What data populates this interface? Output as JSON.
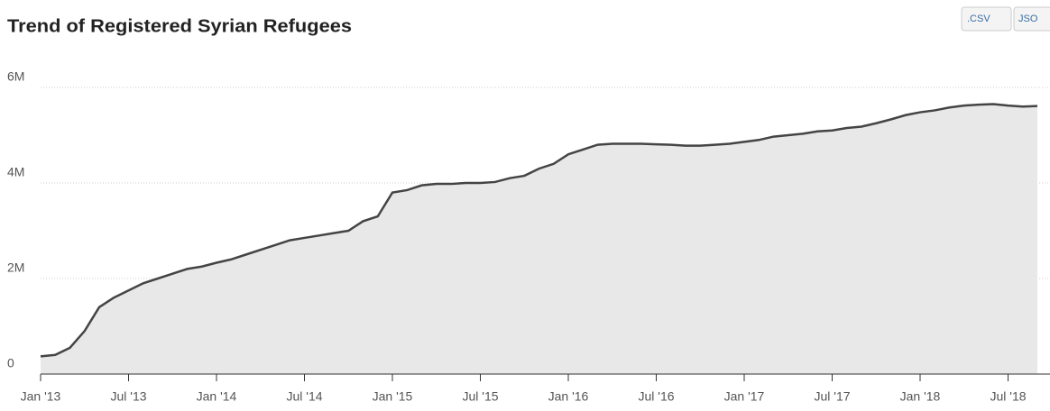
{
  "chart_data": {
    "type": "area",
    "title": "Trend of Registered Syrian Refugees",
    "buttons": [
      ".CSV",
      "JSO"
    ],
    "x": [
      "2013-01",
      "2013-02",
      "2013-03",
      "2013-04",
      "2013-05",
      "2013-06",
      "2013-07",
      "2013-08",
      "2013-09",
      "2013-10",
      "2013-11",
      "2013-12",
      "2014-01",
      "2014-02",
      "2014-03",
      "2014-04",
      "2014-05",
      "2014-06",
      "2014-07",
      "2014-08",
      "2014-09",
      "2014-10",
      "2014-11",
      "2014-12",
      "2015-01",
      "2015-02",
      "2015-03",
      "2015-04",
      "2015-05",
      "2015-06",
      "2015-07",
      "2015-08",
      "2015-09",
      "2015-10",
      "2015-11",
      "2015-12",
      "2016-01",
      "2016-02",
      "2016-03",
      "2016-04",
      "2016-05",
      "2016-06",
      "2016-07",
      "2016-08",
      "2016-09",
      "2016-10",
      "2016-11",
      "2016-12",
      "2017-01",
      "2017-02",
      "2017-03",
      "2017-04",
      "2017-05",
      "2017-06",
      "2017-07",
      "2017-08",
      "2017-09",
      "2017-10",
      "2017-11",
      "2017-12",
      "2018-01",
      "2018-02",
      "2018-03",
      "2018-04",
      "2018-05",
      "2018-06",
      "2018-07",
      "2018-08",
      "2018-09"
    ],
    "values": [
      370000,
      400000,
      550000,
      900000,
      1400000,
      1600000,
      1750000,
      1900000,
      2000000,
      2100000,
      2200000,
      2250000,
      2330000,
      2400000,
      2500000,
      2600000,
      2700000,
      2800000,
      2850000,
      2900000,
      2950000,
      3000000,
      3200000,
      3300000,
      3800000,
      3850000,
      3950000,
      3980000,
      3980000,
      4000000,
      4000000,
      4020000,
      4100000,
      4150000,
      4300000,
      4400000,
      4600000,
      4700000,
      4800000,
      4820000,
      4820000,
      4820000,
      4810000,
      4800000,
      4780000,
      4780000,
      4800000,
      4820000,
      4860000,
      4900000,
      4970000,
      5000000,
      5030000,
      5080000,
      5100000,
      5150000,
      5180000,
      5250000,
      5330000,
      5420000,
      5480000,
      5520000,
      5580000,
      5620000,
      5640000,
      5650000,
      5620000,
      5600000,
      5610000
    ],
    "color": "#444444",
    "fill": "#e8e8e8",
    "xlim": [
      "2013-01",
      "2018-09"
    ],
    "xticks": [
      {
        "value": "2013-01",
        "label": "Jan '13"
      },
      {
        "value": "2013-07",
        "label": "Jul '13"
      },
      {
        "value": "2014-01",
        "label": "Jan '14"
      },
      {
        "value": "2014-07",
        "label": "Jul '14"
      },
      {
        "value": "2015-01",
        "label": "Jan '15"
      },
      {
        "value": "2015-07",
        "label": "Jul '15"
      },
      {
        "value": "2016-01",
        "label": "Jan '16"
      },
      {
        "value": "2016-07",
        "label": "Jul '16"
      },
      {
        "value": "2017-01",
        "label": "Jan '17"
      },
      {
        "value": "2017-07",
        "label": "Jul '17"
      },
      {
        "value": "2018-01",
        "label": "Jan '18"
      },
      {
        "value": "2018-07",
        "label": "Jul '18"
      }
    ],
    "ylim": [
      0,
      6000000
    ],
    "yticks": [
      0,
      {
        "value": 2000000,
        "label": "2M"
      },
      {
        "value": 4000000,
        "label": "4M"
      },
      {
        "value": 6000000,
        "label": "6M"
      }
    ],
    "grid": true
  }
}
